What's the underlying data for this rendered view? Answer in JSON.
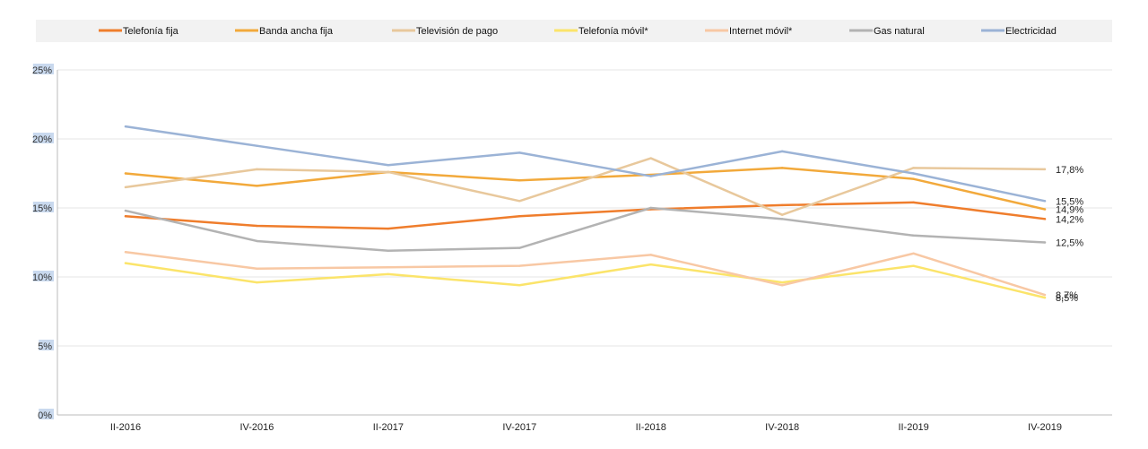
{
  "chart_data": {
    "type": "line",
    "title": "",
    "xlabel": "",
    "ylabel": "",
    "ylim": [
      0,
      25
    ],
    "yticks": [
      "0%",
      "5%",
      "10%",
      "15%",
      "20%",
      "25%"
    ],
    "categories": [
      "II-2016",
      "IV-2016",
      "II-2017",
      "IV-2017",
      "II-2018",
      "IV-2018",
      "II-2019",
      "IV-2019"
    ],
    "grid": true,
    "legend_position": "top",
    "series": [
      {
        "name": "Telefonía fija",
        "color": "#ef7d2c",
        "values": [
          14.4,
          13.7,
          13.5,
          14.4,
          14.9,
          15.2,
          15.4,
          14.2
        ],
        "end_label": "14,2%"
      },
      {
        "name": "Banda ancha fija",
        "color": "#f2a93b",
        "values": [
          17.5,
          16.6,
          17.6,
          17.0,
          17.4,
          17.9,
          17.1,
          14.9
        ],
        "end_label": "14,9%"
      },
      {
        "name": "Televisión de pago",
        "color": "#e8c89c",
        "values": [
          16.5,
          17.8,
          17.6,
          15.5,
          18.6,
          14.5,
          17.9,
          17.8
        ],
        "end_label": "17,8%"
      },
      {
        "name": "Telefonía móvil*",
        "color": "#fbe46a",
        "values": [
          11.0,
          9.6,
          10.2,
          9.4,
          10.9,
          9.6,
          10.8,
          8.5
        ],
        "end_label": "8,5%"
      },
      {
        "name": "Internet móvil*",
        "color": "#f8c8a4",
        "values": [
          11.8,
          10.6,
          10.7,
          10.8,
          11.6,
          9.4,
          11.7,
          8.7
        ],
        "end_label": "8,7%"
      },
      {
        "name": "Gas natural",
        "color": "#b3b3b3",
        "values": [
          14.8,
          12.6,
          11.9,
          12.1,
          15.0,
          14.2,
          13.0,
          12.5
        ],
        "end_label": "12,5%"
      },
      {
        "name": "Electricidad",
        "color": "#9bb3d6",
        "values": [
          20.9,
          19.5,
          18.1,
          19.0,
          17.3,
          19.1,
          17.5,
          15.5
        ],
        "end_label": "15,5%"
      }
    ]
  }
}
